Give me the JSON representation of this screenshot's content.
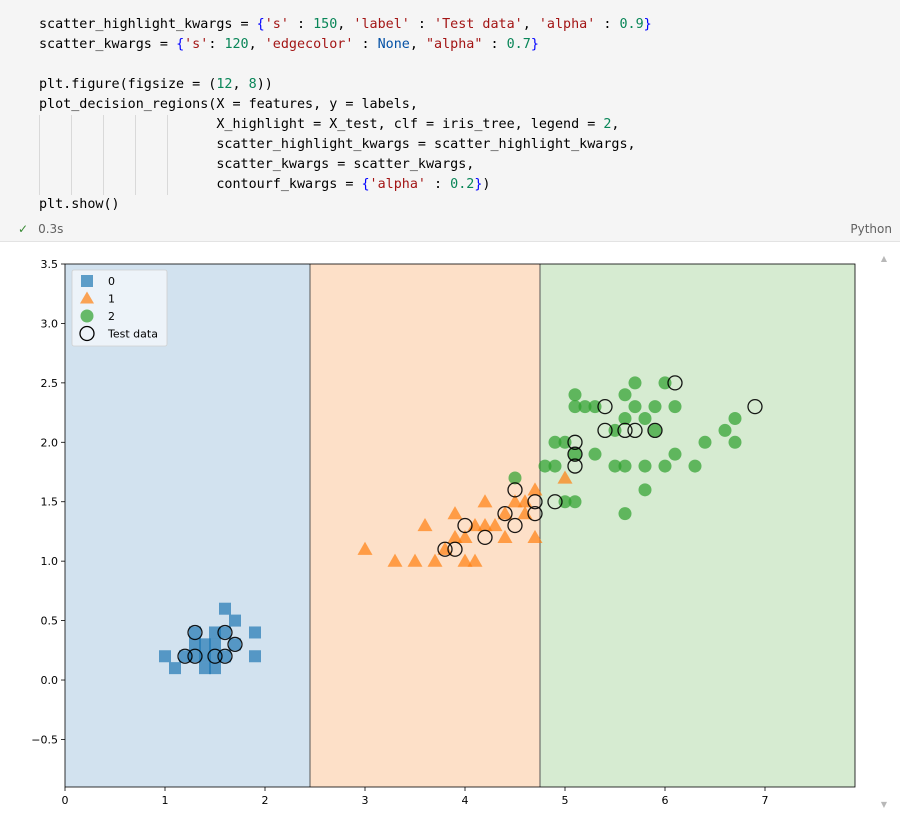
{
  "code_cell": {
    "lines": [
      "scatter_highlight_kwargs = {'s' : 150, 'label' : 'Test data', 'alpha' : 0.9}",
      "scatter_kwargs = {'s': 120, 'edgecolor' : None, \"alpha\" : 0.7}",
      "",
      "plt.figure(figsize = (12, 8))",
      "plot_decision_regions(X = features, y = labels,",
      "                      X_highlight = X_test, clf = iris_tree, legend = 2,",
      "                      scatter_highlight_kwargs = scatter_highlight_kwargs,",
      "                      scatter_kwargs = scatter_kwargs,",
      "                      contourf_kwargs = {'alpha' : 0.2})",
      "plt.show()"
    ],
    "exec_time": "0.3s",
    "language": "Python",
    "status_icon": "check-icon"
  },
  "chart_data": {
    "type": "scatter",
    "title": "",
    "xlabel": "",
    "ylabel": "",
    "xlim": [
      0,
      7.9
    ],
    "ylim": [
      -0.9,
      3.5
    ],
    "x_ticks": [
      "0",
      "1",
      "2",
      "3",
      "4",
      "5",
      "6",
      "7"
    ],
    "y_ticks": [
      "−0.5",
      "0.0",
      "0.5",
      "1.0",
      "1.5",
      "2.0",
      "2.5",
      "3.0",
      "3.5"
    ],
    "y_tick_values": [
      -0.5,
      0,
      0.5,
      1.0,
      1.5,
      2.0,
      2.5,
      3.0,
      3.5
    ],
    "grid": false,
    "legend_position": "top-left",
    "regions": [
      {
        "class": "0",
        "x_from": 0,
        "x_to": 2.45,
        "color": "#d2e2ef"
      },
      {
        "class": "1",
        "x_from": 2.45,
        "x_to": 4.75,
        "color": "#fde0c8"
      },
      {
        "class": "2",
        "x_from": 4.75,
        "x_to": 7.9,
        "color": "#d6ebd1"
      }
    ],
    "series": [
      {
        "name": "0",
        "marker": "square",
        "color": "#1f77b4",
        "points": [
          [
            1.0,
            0.2
          ],
          [
            1.1,
            0.1
          ],
          [
            1.2,
            0.2
          ],
          [
            1.3,
            0.2
          ],
          [
            1.3,
            0.3
          ],
          [
            1.3,
            0.4
          ],
          [
            1.4,
            0.1
          ],
          [
            1.4,
            0.2
          ],
          [
            1.4,
            0.3
          ],
          [
            1.5,
            0.1
          ],
          [
            1.5,
            0.2
          ],
          [
            1.5,
            0.3
          ],
          [
            1.5,
            0.4
          ],
          [
            1.6,
            0.2
          ],
          [
            1.6,
            0.4
          ],
          [
            1.6,
            0.6
          ],
          [
            1.7,
            0.3
          ],
          [
            1.7,
            0.5
          ],
          [
            1.9,
            0.2
          ],
          [
            1.9,
            0.4
          ]
        ]
      },
      {
        "name": "1",
        "marker": "triangle",
        "color": "#ff7f0e",
        "points": [
          [
            3.0,
            1.1
          ],
          [
            3.3,
            1.0
          ],
          [
            3.5,
            1.0
          ],
          [
            3.6,
            1.3
          ],
          [
            3.7,
            1.0
          ],
          [
            3.8,
            1.1
          ],
          [
            3.9,
            1.2
          ],
          [
            3.9,
            1.4
          ],
          [
            4.0,
            1.0
          ],
          [
            4.0,
            1.2
          ],
          [
            4.1,
            1.0
          ],
          [
            4.1,
            1.3
          ],
          [
            4.2,
            1.3
          ],
          [
            4.2,
            1.5
          ],
          [
            4.3,
            1.3
          ],
          [
            4.4,
            1.2
          ],
          [
            4.4,
            1.4
          ],
          [
            4.5,
            1.5
          ],
          [
            4.6,
            1.4
          ],
          [
            4.6,
            1.5
          ],
          [
            4.7,
            1.2
          ],
          [
            4.7,
            1.6
          ],
          [
            5.0,
            1.7
          ]
        ]
      },
      {
        "name": "2",
        "marker": "circle",
        "color": "#2ca02c",
        "points": [
          [
            4.5,
            1.7
          ],
          [
            4.8,
            1.8
          ],
          [
            4.9,
            1.8
          ],
          [
            4.9,
            2.0
          ],
          [
            5.0,
            1.5
          ],
          [
            5.0,
            2.0
          ],
          [
            5.1,
            1.5
          ],
          [
            5.1,
            1.9
          ],
          [
            5.1,
            2.3
          ],
          [
            5.1,
            2.4
          ],
          [
            5.2,
            2.3
          ],
          [
            5.3,
            2.3
          ],
          [
            5.3,
            1.9
          ],
          [
            5.5,
            1.8
          ],
          [
            5.5,
            2.1
          ],
          [
            5.6,
            1.4
          ],
          [
            5.6,
            1.8
          ],
          [
            5.6,
            2.2
          ],
          [
            5.6,
            2.4
          ],
          [
            5.7,
            2.3
          ],
          [
            5.7,
            2.5
          ],
          [
            5.8,
            1.6
          ],
          [
            5.8,
            1.8
          ],
          [
            5.8,
            2.2
          ],
          [
            5.9,
            2.1
          ],
          [
            5.9,
            2.3
          ],
          [
            6.0,
            1.8
          ],
          [
            6.0,
            2.5
          ],
          [
            6.1,
            1.9
          ],
          [
            6.1,
            2.3
          ],
          [
            6.3,
            1.8
          ],
          [
            6.4,
            2.0
          ],
          [
            6.6,
            2.1
          ],
          [
            6.7,
            2.0
          ],
          [
            6.7,
            2.2
          ]
        ]
      },
      {
        "name": "Test data",
        "marker": "circle-hollow",
        "color": "#000000",
        "points": [
          [
            1.2,
            0.2
          ],
          [
            1.3,
            0.2
          ],
          [
            1.3,
            0.4
          ],
          [
            1.5,
            0.2
          ],
          [
            1.6,
            0.2
          ],
          [
            1.6,
            0.4
          ],
          [
            1.7,
            0.3
          ],
          [
            3.8,
            1.1
          ],
          [
            3.9,
            1.1
          ],
          [
            4.0,
            1.3
          ],
          [
            4.2,
            1.2
          ],
          [
            4.4,
            1.4
          ],
          [
            4.5,
            1.3
          ],
          [
            4.5,
            1.6
          ],
          [
            4.7,
            1.4
          ],
          [
            4.7,
            1.5
          ],
          [
            4.9,
            1.5
          ],
          [
            5.1,
            1.8
          ],
          [
            5.1,
            1.9
          ],
          [
            5.1,
            2.0
          ],
          [
            5.4,
            2.1
          ],
          [
            5.4,
            2.3
          ],
          [
            5.6,
            2.1
          ],
          [
            5.7,
            2.1
          ],
          [
            5.9,
            2.1
          ],
          [
            6.1,
            2.5
          ],
          [
            6.9,
            2.3
          ]
        ]
      }
    ]
  }
}
